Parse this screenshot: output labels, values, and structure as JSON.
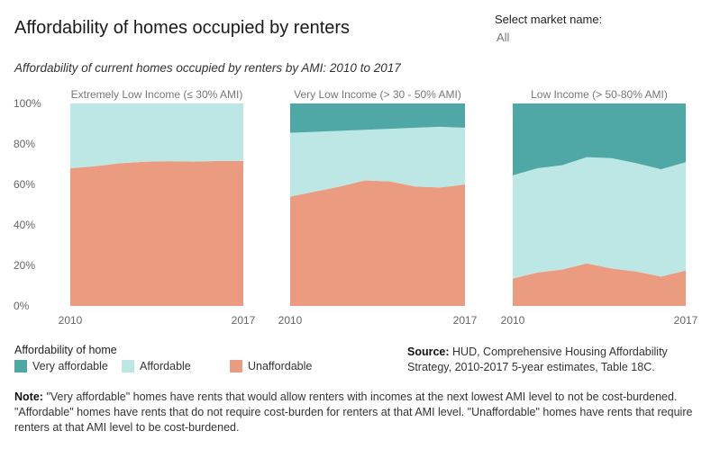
{
  "title": "Affordability of homes occupied by renters",
  "subtitle": "Affordability of current homes occupied by renters by AMI: 2010 to 2017",
  "filter": {
    "label": "Select market name:",
    "value": "All"
  },
  "colors": {
    "very_affordable": "#4fa8a6",
    "affordable": "#bde7e5",
    "unaffordable": "#eb9c80"
  },
  "legend": {
    "title": "Affordability of home",
    "items": [
      {
        "label": "Very affordable",
        "color": "#4fa8a6"
      },
      {
        "label": "Affordable",
        "color": "#bde7e5"
      },
      {
        "label": "Unaffordable",
        "color": "#eb9c80"
      }
    ]
  },
  "source": {
    "label": "Source:",
    "text": "HUD, Comprehensive Housing Affordability Strategy, 2010-2017 5-year estimates, Table 18C."
  },
  "note": {
    "label": "Note:",
    "text": "\"Very affordable\" homes have rents that would allow renters with incomes at the next lowest AMI level to not be cost-burdened. \"Affordable\" homes have rents that do not require cost-burden for renters at that AMI level. \"Unaffordable\" homes have rents that require renters at that AMI level to be cost-burdened."
  },
  "chart_data": {
    "type": "area",
    "stacked": true,
    "ylim": [
      0,
      100
    ],
    "y_ticks": [
      "0%",
      "20%",
      "40%",
      "60%",
      "80%",
      "100%"
    ],
    "x": [
      2010,
      2011,
      2012,
      2013,
      2014,
      2015,
      2016,
      2017
    ],
    "x_tick_labels": [
      "2010",
      "2017"
    ],
    "panels": [
      {
        "title": "Extremely Low Income (≤ 30% AMI)",
        "series": [
          {
            "name": "Unaffordable",
            "values": [
              68,
              69,
              70.5,
              71.2,
              71.5,
              71.3,
              71.6,
              71.6
            ]
          },
          {
            "name": "Affordable",
            "values": [
              32,
              31,
              29.5,
              28.8,
              28.5,
              28.7,
              28.4,
              28.4
            ]
          },
          {
            "name": "Very affordable",
            "values": [
              0,
              0,
              0,
              0,
              0,
              0,
              0,
              0
            ]
          }
        ]
      },
      {
        "title": "Very Low Income (> 30 - 50% AMI)",
        "series": [
          {
            "name": "Unaffordable",
            "values": [
              54,
              56.5,
              59,
              62,
              61.5,
              59,
              58.5,
              60
            ]
          },
          {
            "name": "Affordable",
            "values": [
              31.5,
              29.5,
              27.5,
              25,
              26,
              29,
              30,
              28
            ]
          },
          {
            "name": "Very affordable",
            "values": [
              14.5,
              14,
              13.5,
              13,
              12.5,
              12,
              11.5,
              12
            ]
          }
        ]
      },
      {
        "title": "Low Income (> 50-80% AMI)",
        "series": [
          {
            "name": "Unaffordable",
            "values": [
              13.5,
              16.5,
              18,
              21,
              18.5,
              17,
              14.5,
              17.5
            ]
          },
          {
            "name": "Affordable",
            "values": [
              51,
              51.5,
              51.5,
              52.5,
              54.5,
              53.5,
              53,
              53.5
            ]
          },
          {
            "name": "Very affordable",
            "values": [
              35.5,
              32,
              30.5,
              26.5,
              27,
              29.5,
              32.5,
              29
            ]
          }
        ]
      }
    ]
  }
}
